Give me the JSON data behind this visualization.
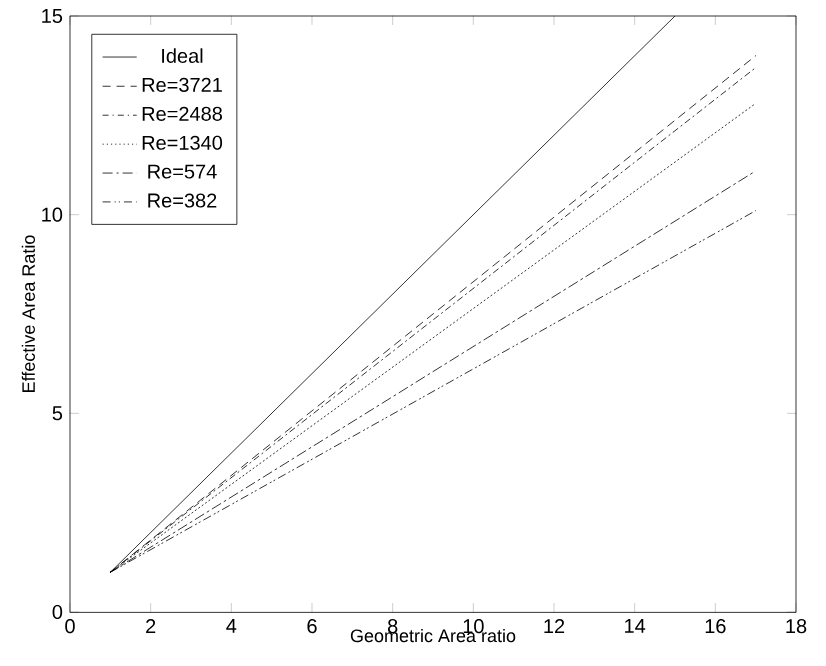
{
  "chart_data": {
    "type": "line",
    "xlabel": "Geometric Area ratio",
    "ylabel": "Effective Area Ratio",
    "xlim": [
      0,
      18
    ],
    "ylim": [
      0,
      15
    ],
    "xticks": [
      0,
      2,
      4,
      6,
      8,
      10,
      12,
      14,
      16,
      18
    ],
    "yticks": [
      0,
      5,
      10,
      15
    ],
    "grid": false,
    "legend": "top left",
    "marker": "none",
    "series": [
      {
        "name": "Ideal",
        "color": "#000000",
        "line_style": "solid",
        "x": [
          1,
          15
        ],
        "values": [
          1,
          15
        ]
      },
      {
        "name": "Re=3721",
        "color": "#000000",
        "line_style": "dashed",
        "x": [
          1,
          17
        ],
        "values": [
          1,
          14.0
        ]
      },
      {
        "name": "Re=2488",
        "color": "#000000",
        "line_style": "dashdot",
        "x": [
          1,
          17
        ],
        "values": [
          1,
          13.7
        ]
      },
      {
        "name": "Re=1340",
        "color": "#000000",
        "line_style": "dotted",
        "x": [
          1,
          17
        ],
        "values": [
          1,
          12.8
        ]
      },
      {
        "name": "Re=574",
        "color": "#000000",
        "line_style": "longdashdot",
        "x": [
          1,
          17
        ],
        "values": [
          1,
          11.1
        ]
      },
      {
        "name": "Re=382",
        "color": "#000000",
        "line_style": "dashdotdot",
        "x": [
          1,
          17
        ],
        "values": [
          1,
          10.1
        ]
      }
    ]
  }
}
